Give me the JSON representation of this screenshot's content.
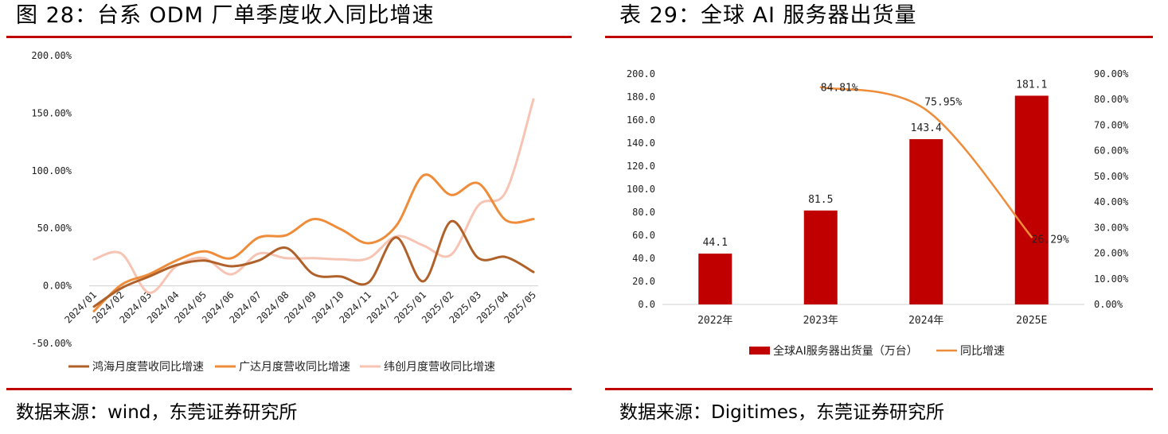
{
  "left": {
    "title": "图 28：台系 ODM 厂单季度收入同比增速",
    "source": "数据来源：wind，东莞证券研究所"
  },
  "right": {
    "title": "表 29：全球 AI 服务器出货量",
    "source": "数据来源：Digitimes，东莞证券研究所"
  },
  "chart_data": [
    {
      "type": "line",
      "title": "",
      "categories": [
        "2024/01",
        "2024/02",
        "2024/03",
        "2024/04",
        "2024/05",
        "2024/06",
        "2024/07",
        "2024/08",
        "2024/09",
        "2024/10",
        "2024/11",
        "2024/12",
        "2025/01",
        "2025/02",
        "2025/03",
        "2025/04",
        "2025/05"
      ],
      "y_ticks": [
        "200.00%",
        "150.00%",
        "100.00%",
        "50.00%",
        "0.00%",
        "-50.00%"
      ],
      "ylim": [
        -50,
        200
      ],
      "grid": false,
      "legend_position": "bottom",
      "series": [
        {
          "name": "鸿海月度营收同比增速",
          "color": "#b0612a",
          "values": [
            -18,
            -2,
            8,
            18,
            22,
            17,
            22,
            33,
            10,
            8,
            3,
            42,
            4,
            56,
            24,
            25,
            12
          ]
        },
        {
          "name": "广达月度营收同比增速",
          "color": "#ee8c3a",
          "values": [
            -22,
            1,
            10,
            22,
            30,
            24,
            42,
            44,
            58,
            49,
            37,
            52,
            96,
            79,
            89,
            57,
            58
          ]
        },
        {
          "name": "纬创月度营收同比增速",
          "color": "#f7c3b3",
          "values": [
            23,
            28,
            -6,
            17,
            24,
            10,
            28,
            24,
            24,
            23,
            24,
            43,
            35,
            27,
            70,
            82,
            162
          ]
        }
      ]
    },
    {
      "type": "bar",
      "title": "",
      "categories": [
        "2022年",
        "2023年",
        "2024年",
        "2025E"
      ],
      "y_left_ticks": [
        "200.0",
        "180.0",
        "160.0",
        "140.0",
        "120.0",
        "100.0",
        "80.0",
        "60.0",
        "40.0",
        "20.0",
        "0.0"
      ],
      "y_right_ticks": [
        "90.00%",
        "80.00%",
        "70.00%",
        "60.00%",
        "50.00%",
        "40.00%",
        "30.00%",
        "20.00%",
        "10.00%",
        "0.00%"
      ],
      "ylim_left": [
        0,
        200
      ],
      "ylim_right": [
        0,
        90
      ],
      "grid": false,
      "legend_position": "bottom",
      "bar_series": {
        "name": "全球AI服务器出货量（万台）",
        "color": "#c00000",
        "values": [
          44.1,
          81.5,
          143.4,
          181.1
        ],
        "labels": [
          "44.1",
          "81.5",
          "143.4",
          "181.1"
        ]
      },
      "line_series": {
        "name": "同比增速",
        "color": "#ee8c3a",
        "x_categories": [
          "2023年",
          "2024年",
          "2025E"
        ],
        "values": [
          84.81,
          75.95,
          26.29
        ],
        "labels": [
          "84.81%",
          "75.95%",
          "26.29%"
        ]
      }
    }
  ]
}
